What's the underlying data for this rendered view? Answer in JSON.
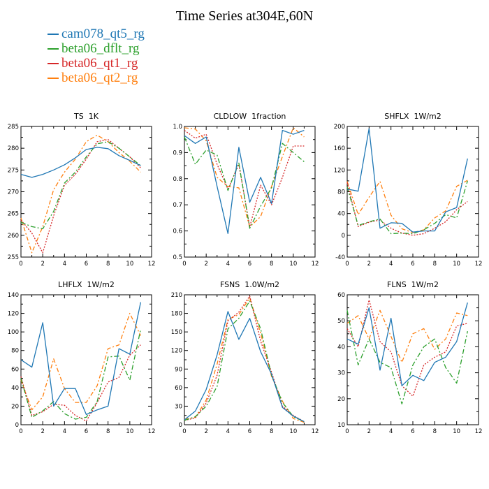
{
  "title": "Time Series at304E,60N",
  "legend": [
    {
      "name": "cam078_qt5_rg",
      "color": "#1f77b4",
      "dash": ""
    },
    {
      "name": "beta06_dflt_rg",
      "color": "#2ca02c",
      "dash": "7,3,2,3"
    },
    {
      "name": "beta06_qt1_rg",
      "color": "#d62728",
      "dash": "2,2"
    },
    {
      "name": "beta06_qt2_rg",
      "color": "#ff7f0e",
      "dash": "6,3,2,3"
    }
  ],
  "chart_data": [
    {
      "type": "line",
      "title": "TS 1K",
      "x": [
        0,
        1,
        2,
        3,
        4,
        5,
        6,
        7,
        8,
        9,
        10,
        11
      ],
      "xlim": [
        0,
        12
      ],
      "ylim": [
        255,
        285
      ],
      "xticks": [
        0,
        2,
        4,
        6,
        8,
        10,
        12
      ],
      "yticks": [
        255,
        260,
        265,
        270,
        275,
        280,
        285
      ],
      "series": [
        {
          "name": "cam078_qt5_rg",
          "values": [
            274,
            273.3,
            274,
            275,
            276.2,
            277.8,
            279.7,
            280.2,
            279.9,
            278.3,
            277.2,
            276
          ]
        },
        {
          "name": "beta06_dflt_rg",
          "values": [
            263,
            262,
            261.5,
            265.5,
            272,
            274.5,
            278,
            281,
            281.5,
            280,
            278,
            276
          ]
        },
        {
          "name": "beta06_qt1_rg",
          "values": [
            263.5,
            260.5,
            256,
            264.5,
            271.5,
            274,
            277.5,
            281.5,
            282,
            280,
            278,
            275.5
          ]
        },
        {
          "name": "beta06_qt2_rg",
          "values": [
            264,
            256,
            262,
            270.5,
            274.5,
            277.5,
            281.5,
            283,
            281.5,
            279,
            277,
            274.5
          ]
        }
      ]
    },
    {
      "type": "line",
      "title": "CLDLOW 1fraction",
      "x": [
        0,
        1,
        2,
        3,
        4,
        5,
        6,
        7,
        8,
        9,
        10,
        11
      ],
      "xlim": [
        0,
        12
      ],
      "ylim": [
        0.5,
        1.0
      ],
      "xticks": [
        0,
        2,
        4,
        6,
        8,
        10,
        12
      ],
      "yticks": [
        0.5,
        0.6,
        0.7,
        0.8,
        0.9,
        1.0
      ],
      "series": [
        {
          "name": "cam078_qt5_rg",
          "values": [
            0.965,
            0.935,
            0.96,
            0.77,
            0.59,
            0.92,
            0.71,
            0.805,
            0.705,
            0.985,
            0.97,
            0.985
          ]
        },
        {
          "name": "beta06_dflt_rg",
          "values": [
            0.96,
            0.855,
            0.91,
            0.89,
            0.755,
            0.86,
            0.61,
            0.695,
            0.765,
            0.935,
            0.9,
            0.865
          ]
        },
        {
          "name": "beta06_qt1_rg",
          "values": [
            0.985,
            0.955,
            0.97,
            0.855,
            0.76,
            0.855,
            0.615,
            0.775,
            0.7,
            0.805,
            0.925,
            0.925
          ]
        },
        {
          "name": "beta06_qt2_rg",
          "values": [
            0.995,
            0.99,
            0.945,
            0.805,
            0.77,
            0.765,
            0.615,
            0.655,
            0.77,
            0.885,
            0.995,
            0.96
          ]
        }
      ]
    },
    {
      "type": "line",
      "title": "SHFLX 1W/m2",
      "x": [
        0,
        1,
        2,
        3,
        4,
        5,
        6,
        7,
        8,
        9,
        10,
        11
      ],
      "xlim": [
        0,
        12
      ],
      "ylim": [
        -40,
        200
      ],
      "xticks": [
        0,
        2,
        4,
        6,
        8,
        10,
        12
      ],
      "yticks": [
        -40,
        0,
        40,
        80,
        120,
        160,
        200
      ],
      "series": [
        {
          "name": "cam078_qt5_rg",
          "values": [
            85,
            81,
            196,
            13,
            23,
            22,
            6,
            8,
            8,
            43,
            51,
            141
          ]
        },
        {
          "name": "beta06_dflt_rg",
          "values": [
            89,
            18,
            25,
            30,
            3,
            4,
            3,
            10,
            22,
            38,
            32,
            100
          ]
        },
        {
          "name": "beta06_qt1_rg",
          "values": [
            97,
            16,
            24,
            28,
            13,
            4,
            0,
            3,
            13,
            25,
            47,
            62
          ]
        },
        {
          "name": "beta06_qt2_rg",
          "values": [
            99,
            38,
            70,
            99,
            37,
            12,
            5,
            10,
            32,
            45,
            90,
            101
          ]
        }
      ]
    },
    {
      "type": "line",
      "title": "LHFLX 1W/m2",
      "x": [
        0,
        1,
        2,
        3,
        4,
        5,
        6,
        7,
        8,
        9,
        10,
        11
      ],
      "xlim": [
        0,
        12
      ],
      "ylim": [
        0,
        140
      ],
      "xticks": [
        0,
        2,
        4,
        6,
        8,
        10,
        12
      ],
      "yticks": [
        0,
        20,
        40,
        60,
        80,
        100,
        120,
        140
      ],
      "series": [
        {
          "name": "cam078_qt5_rg",
          "values": [
            70,
            62,
            110,
            20,
            39,
            39,
            11,
            16,
            20,
            82,
            76,
            132
          ]
        },
        {
          "name": "beta06_dflt_rg",
          "values": [
            50,
            8,
            15,
            25,
            12,
            6,
            8,
            25,
            73,
            74,
            48,
            103
          ]
        },
        {
          "name": "beta06_qt1_rg",
          "values": [
            52,
            10,
            14,
            22,
            21,
            10,
            4,
            24,
            46,
            51,
            75,
            86
          ]
        },
        {
          "name": "beta06_qt2_rg",
          "values": [
            48,
            16,
            30,
            71,
            39,
            24,
            24,
            42,
            82,
            86,
            120,
            96
          ]
        }
      ]
    },
    {
      "type": "line",
      "title": "FSNS 1.0W/m2",
      "x": [
        0,
        1,
        2,
        3,
        4,
        5,
        6,
        7,
        8,
        9,
        10,
        11
      ],
      "xlim": [
        0,
        12
      ],
      "ylim": [
        0,
        210
      ],
      "xticks": [
        0,
        2,
        4,
        6,
        8,
        10,
        12
      ],
      "yticks": [
        0,
        30,
        60,
        90,
        120,
        150,
        180,
        210
      ],
      "series": [
        {
          "name": "cam078_qt5_rg",
          "values": [
            8,
            22,
            57,
            113,
            183,
            138,
            172,
            118,
            82,
            28,
            14,
            5
          ]
        },
        {
          "name": "beta06_dflt_rg",
          "values": [
            7,
            13,
            30,
            62,
            155,
            172,
            200,
            155,
            80,
            36,
            13,
            5
          ]
        },
        {
          "name": "beta06_qt1_rg",
          "values": [
            7,
            11,
            35,
            80,
            168,
            182,
            208,
            135,
            85,
            30,
            15,
            5
          ]
        },
        {
          "name": "beta06_qt2_rg",
          "values": [
            9,
            12,
            40,
            98,
            170,
            178,
            205,
            148,
            78,
            38,
            10,
            4
          ]
        }
      ]
    },
    {
      "type": "line",
      "title": "FLNS 1W/m2",
      "x": [
        0,
        1,
        2,
        3,
        4,
        5,
        6,
        7,
        8,
        9,
        10,
        11
      ],
      "xlim": [
        0,
        12
      ],
      "ylim": [
        10,
        60
      ],
      "xticks": [
        0,
        2,
        4,
        6,
        8,
        10,
        12
      ],
      "yticks": [
        10,
        20,
        30,
        40,
        50,
        60
      ],
      "series": [
        {
          "name": "cam078_qt5_rg",
          "values": [
            43,
            41,
            55,
            31,
            51,
            25,
            29,
            27,
            34,
            36,
            42,
            57
          ]
        },
        {
          "name": "beta06_dflt_rg",
          "values": [
            54,
            33,
            43,
            34,
            32,
            18,
            33,
            40,
            43,
            32,
            26,
            46
          ]
        },
        {
          "name": "beta06_qt1_rg",
          "values": [
            47,
            40,
            58,
            42,
            38,
            25,
            21,
            33,
            36,
            38,
            48,
            49
          ]
        },
        {
          "name": "beta06_qt2_rg",
          "values": [
            49,
            52,
            43,
            54,
            44,
            34,
            45,
            47,
            39,
            43,
            53,
            52
          ]
        }
      ]
    }
  ]
}
